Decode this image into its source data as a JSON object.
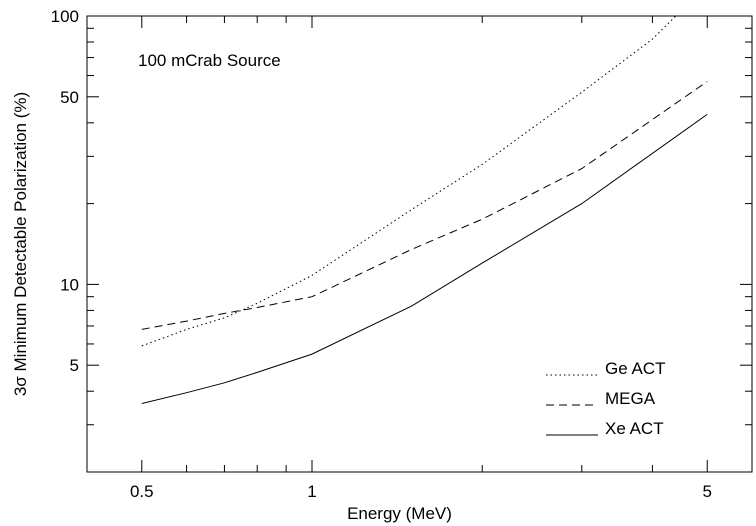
{
  "chart_data": {
    "type": "line",
    "title": "",
    "xlabel": "Energy (MeV)",
    "ylabel": "3σ Minimum Detectable Polarization (%)",
    "annotation": "100 mCrab Source",
    "x_scale": "log",
    "y_scale": "log",
    "xlim": [
      0.4,
      6.0
    ],
    "ylim": [
      2.0,
      100
    ],
    "x_ticks": [
      {
        "value": 0.5,
        "label": "0.5"
      },
      {
        "value": 1,
        "label": "1"
      },
      {
        "value": 5,
        "label": "5"
      }
    ],
    "x_minor_ticks": [
      0.6,
      0.7,
      0.8,
      0.9,
      2,
      3,
      4,
      6
    ],
    "y_ticks": [
      {
        "value": 5,
        "label": "5"
      },
      {
        "value": 10,
        "label": "10"
      },
      {
        "value": 50,
        "label": "50"
      },
      {
        "value": 100,
        "label": "100"
      }
    ],
    "y_minor_ticks": [
      2,
      3,
      4,
      6,
      7,
      8,
      9,
      20,
      30,
      40,
      60,
      70,
      80,
      90
    ],
    "grid": false,
    "legend_position": "bottom-right",
    "series": [
      {
        "name": "Ge ACT",
        "style": "dotted",
        "x": [
          0.5,
          0.6,
          0.7,
          0.8,
          1.0,
          1.5,
          2.0,
          3.0,
          4.0,
          4.4
        ],
        "y": [
          5.9,
          6.8,
          7.5,
          8.5,
          10.8,
          19,
          28,
          52,
          82,
          100
        ]
      },
      {
        "name": "MEGA",
        "style": "dashed",
        "x": [
          0.5,
          0.6,
          0.7,
          0.8,
          1.0,
          1.5,
          2.0,
          3.0,
          5.0
        ],
        "y": [
          6.8,
          7.3,
          7.8,
          8.2,
          9.0,
          13.5,
          17.5,
          27,
          57
        ]
      },
      {
        "name": "Xe ACT",
        "style": "solid",
        "x": [
          0.5,
          0.6,
          0.7,
          0.8,
          1.0,
          1.5,
          2.0,
          3.0,
          5.0
        ],
        "y": [
          3.6,
          3.95,
          4.3,
          4.7,
          5.5,
          8.3,
          12,
          20,
          43
        ]
      }
    ]
  }
}
